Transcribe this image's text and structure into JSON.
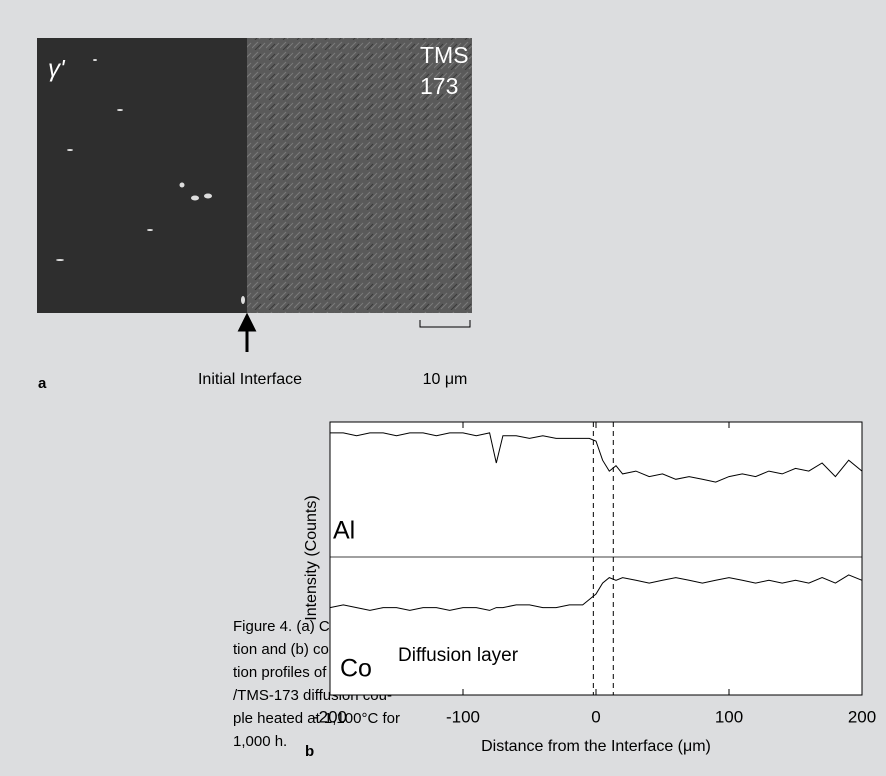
{
  "micrograph": {
    "gamma": "γ'",
    "label_line1": "TMS",
    "label_line2": "173",
    "panel": "a",
    "arrow_label": "Initial Interface",
    "scale": "10 μm"
  },
  "caption": [
    "Figure 4. (a) Cross sec-",
    "tion and (b) concentra-",
    "tion profiles of TMS-173γ′",
    "/TMS-173 diffusion cou-",
    "ple heated at 1,100°C for",
    "1,000 h."
  ],
  "chart_data": {
    "type": "line",
    "panel": "b",
    "x_label": "Distance from the Interface (μm)",
    "y_label": "Intensity (Counts)",
    "xlim": [
      -200,
      200
    ],
    "xticks": [
      -200,
      -100,
      0,
      100,
      200
    ],
    "ylim": [
      0,
      100
    ],
    "annotation": "Diffusion layer",
    "dashed_lines": [
      -2,
      13
    ],
    "x": [
      -200,
      -190,
      -180,
      -170,
      -160,
      -150,
      -140,
      -130,
      -120,
      -110,
      -100,
      -90,
      -80,
      -75,
      -70,
      -60,
      -50,
      -40,
      -30,
      -20,
      -10,
      -5,
      0,
      5,
      10,
      15,
      20,
      30,
      40,
      50,
      60,
      70,
      80,
      90,
      100,
      110,
      120,
      130,
      140,
      150,
      160,
      170,
      180,
      190,
      200
    ],
    "series": [
      {
        "name": "Al",
        "color": "#000000",
        "values": [
          96,
          96,
          95,
          96,
          96,
          95,
          96,
          96,
          95,
          96,
          96,
          95,
          96,
          85,
          95,
          95,
          94,
          95,
          94,
          94,
          94,
          94,
          93,
          86,
          82,
          84,
          81,
          82,
          80,
          81,
          79,
          80,
          79,
          78,
          80,
          81,
          80,
          82,
          81,
          83,
          82,
          85,
          80,
          86,
          82
        ]
      },
      {
        "name": "Co",
        "color": "#000000",
        "values": [
          32,
          33,
          32,
          31,
          32,
          32,
          31,
          32,
          32,
          31,
          32,
          32,
          31,
          32,
          32,
          33,
          33,
          32,
          32,
          33,
          33,
          35,
          37,
          41,
          43,
          42,
          43,
          42,
          41,
          42,
          43,
          42,
          41,
          42,
          43,
          42,
          41,
          42,
          41,
          42,
          41,
          43,
          41,
          44,
          42
        ]
      }
    ]
  }
}
